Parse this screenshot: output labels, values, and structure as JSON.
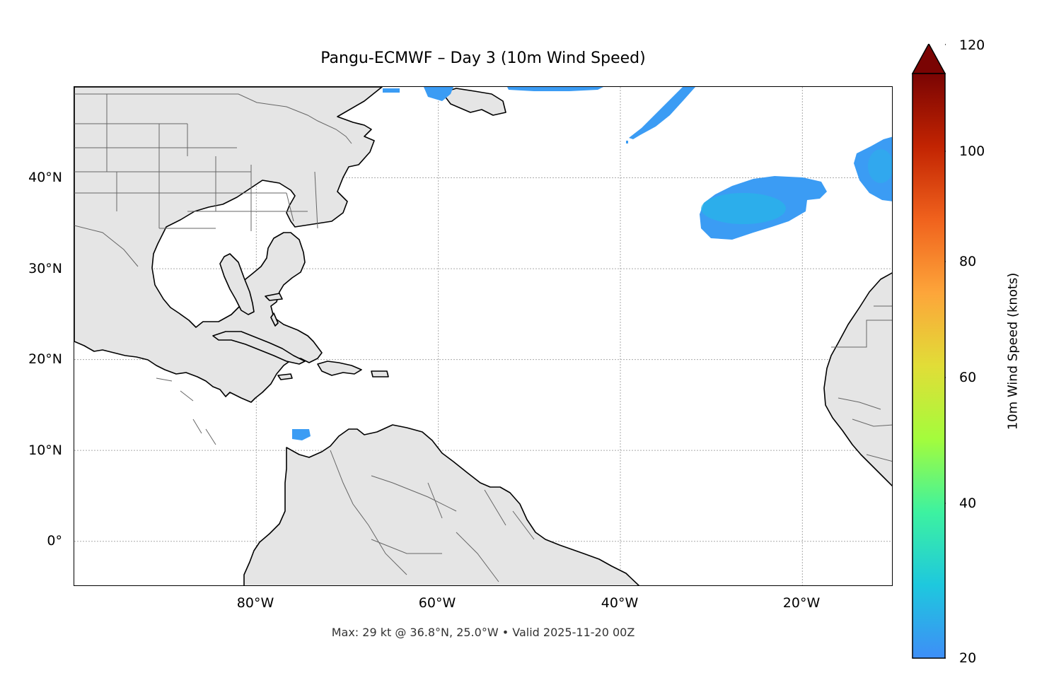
{
  "title": "Pangu-ECMWF – Day 3 (10m Wind Speed)",
  "subtitle": "Max: 29 kt @ 36.8°N, 25.0°W • Valid 2025-11-20 00Z",
  "map": {
    "projection": "PlateCarree",
    "extent": {
      "lon_min": -100,
      "lon_max": -10,
      "lat_min": -5,
      "lat_max": 50
    },
    "gridlines": "dotted",
    "land_color": "#e5e5e5",
    "lat_ticks": [
      {
        "value": 40,
        "label": "40°N"
      },
      {
        "value": 30,
        "label": "30°N"
      },
      {
        "value": 20,
        "label": "20°N"
      },
      {
        "value": 10,
        "label": "10°N"
      },
      {
        "value": 0,
        "label": "0°"
      }
    ],
    "lon_ticks": [
      {
        "value": -80,
        "label": "80°W"
      },
      {
        "value": -60,
        "label": "60°W"
      },
      {
        "value": -40,
        "label": "40°W"
      },
      {
        "value": -20,
        "label": "20°W"
      }
    ],
    "max_wind": {
      "value_kt": 29,
      "lat": 36.8,
      "lon": -25.0
    },
    "wind_regions": [
      {
        "name": "central-atlantic-wind-max",
        "speed_kt": 29
      },
      {
        "name": "eastern-atlantic-wind-patch",
        "speed_kt": 24
      },
      {
        "name": "north-atlantic-wind-band",
        "speed_kt": 22
      },
      {
        "name": "newfoundland-wind-patch",
        "speed_kt": 21
      },
      {
        "name": "caribbean-wind-patch",
        "speed_kt": 21
      }
    ]
  },
  "colorbar": {
    "label": "10m Wind Speed (knots)",
    "min": 20,
    "max": 120,
    "extend": "max",
    "colormap": "turbo",
    "colors": [
      "#3e8ef7",
      "#1ec8de",
      "#3df2a0",
      "#a4fc3c",
      "#e1dd37",
      "#fda53a",
      "#f0621d",
      "#c22402",
      "#7a0403"
    ],
    "ticks": [
      {
        "value": 120,
        "label": "120"
      },
      {
        "value": 100,
        "label": "100"
      },
      {
        "value": 80,
        "label": "80"
      },
      {
        "value": 60,
        "label": "60"
      },
      {
        "value": 40,
        "label": "40"
      },
      {
        "value": 20,
        "label": "20"
      }
    ]
  }
}
